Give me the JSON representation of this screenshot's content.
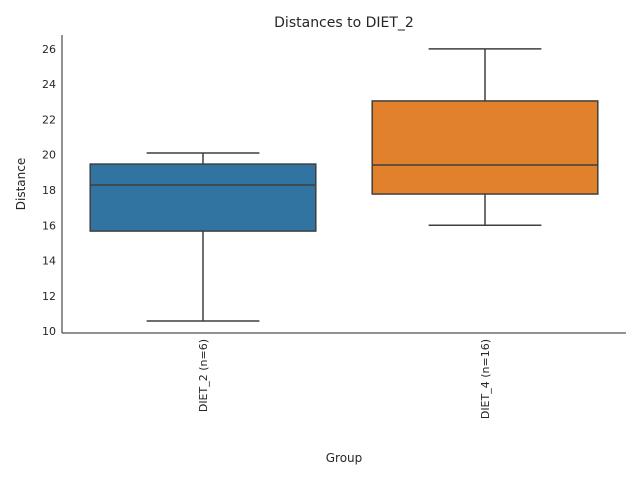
{
  "chart_data": {
    "type": "box",
    "title": "Distances to DIET_2",
    "xlabel": "Group",
    "ylabel": "Distance",
    "ylim": [
      9.89,
      26.79
    ],
    "yticks": [
      10,
      12,
      14,
      16,
      18,
      20,
      22,
      24,
      26
    ],
    "grid": false,
    "categories": [
      "DIET_2 (n=6)",
      "DIET_4 (n=16)"
    ],
    "boxes": [
      {
        "whisker_low": 10.57,
        "q1": 15.67,
        "median": 18.28,
        "q3": 19.47,
        "whisker_high": 20.1,
        "color": "#3274a1"
      },
      {
        "whisker_low": 16.0,
        "q1": 17.77,
        "median": 19.42,
        "q3": 23.05,
        "whisker_high": 26.0,
        "color": "#e1812c"
      }
    ]
  }
}
